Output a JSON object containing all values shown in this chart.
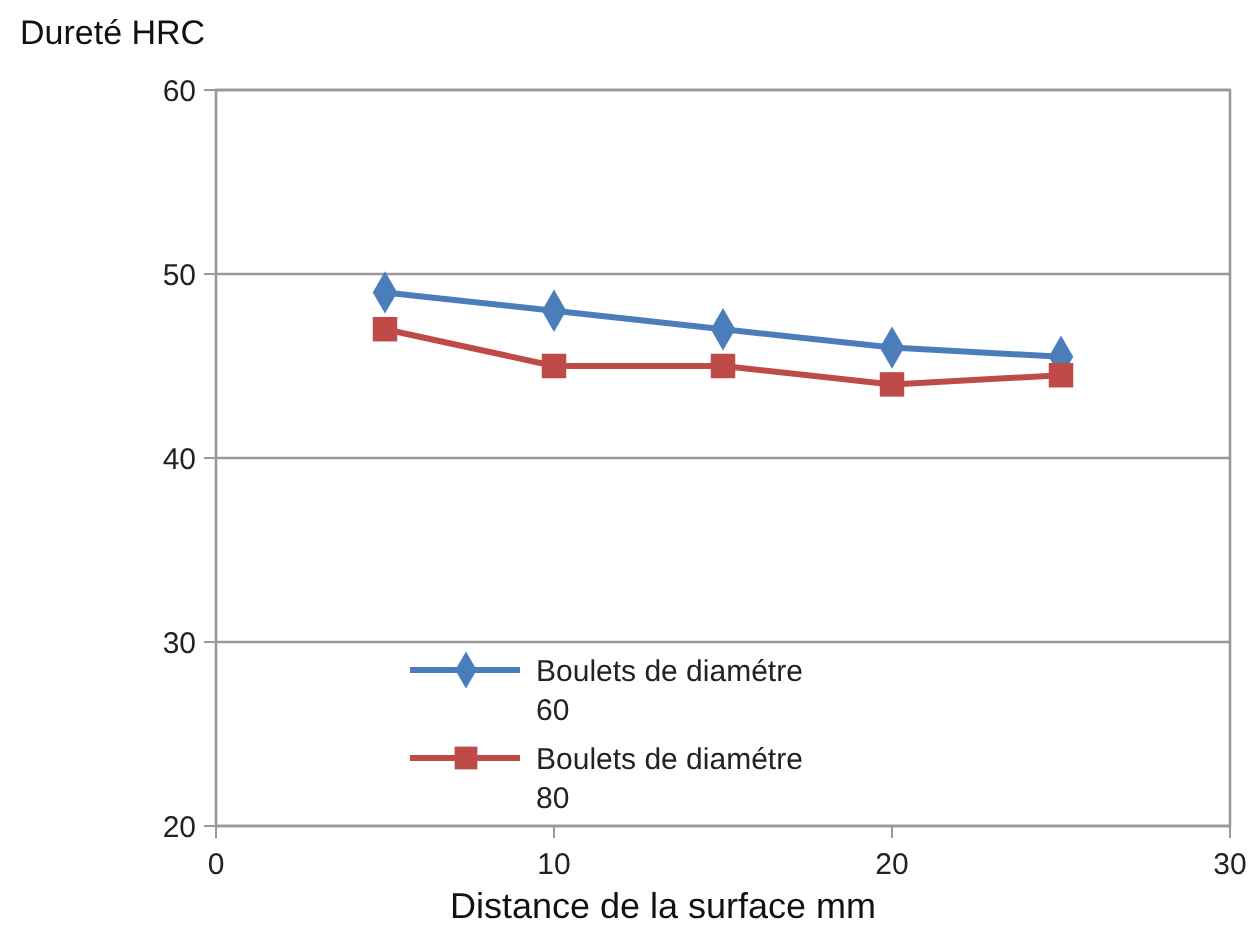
{
  "chart_data": {
    "type": "line",
    "ylabel": "Dureté HRC",
    "xlabel": "Distance de la surface mm",
    "x": [
      5,
      10,
      15,
      20,
      25
    ],
    "series": [
      {
        "name": "Boulets de diamétre 60",
        "color": "#4a7ebb",
        "marker": "diamond",
        "values": [
          49,
          48,
          47,
          46,
          45.5
        ]
      },
      {
        "name": "Boulets de diamétre 80",
        "color": "#be4b48",
        "marker": "square",
        "values": [
          47,
          45,
          45,
          44,
          44.5
        ]
      }
    ],
    "xlim": [
      0,
      30
    ],
    "xticks": [
      0,
      10,
      20,
      30
    ],
    "ylim": [
      20,
      60
    ],
    "yticks": [
      20,
      30,
      40,
      50,
      60
    ],
    "grid": "y",
    "legend": "bottom"
  }
}
